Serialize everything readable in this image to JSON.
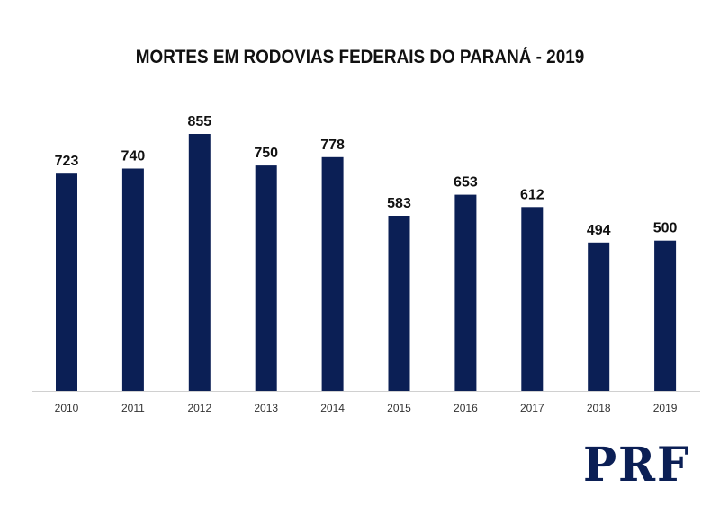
{
  "chart_data": {
    "type": "bar",
    "title": "MORTES EM RODOVIAS FEDERAIS DO PARANÁ - 2019",
    "categories": [
      "2010",
      "2011",
      "2012",
      "2013",
      "2014",
      "2015",
      "2016",
      "2017",
      "2018",
      "2019"
    ],
    "values": [
      723,
      740,
      855,
      750,
      778,
      583,
      653,
      612,
      494,
      500
    ],
    "xlabel": "",
    "ylabel": "",
    "ylim": [
      0,
      855
    ],
    "grid": false,
    "legend": "none",
    "bar_color": "#0b1f55"
  },
  "logo": {
    "text": "PRF",
    "color": "#0b1f55"
  }
}
